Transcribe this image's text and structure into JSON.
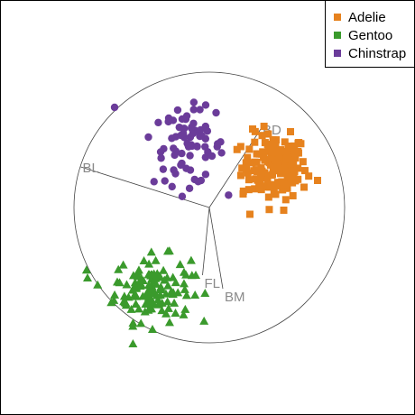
{
  "chart_data": {
    "type": "scatter",
    "title": "",
    "xlabel": "",
    "ylabel": "",
    "grid": false,
    "xlim": [
      -1,
      1
    ],
    "ylim": [
      -1,
      1
    ],
    "legend": {
      "placement": "top-right",
      "entries": [
        {
          "label": "Adelie",
          "color": "#e6821e",
          "shape": "square"
        },
        {
          "label": "Gentoo",
          "color": "#3a9a2c",
          "shape": "triangle"
        },
        {
          "label": "Chinstrap",
          "color": "#6b3c9a",
          "shape": "circle"
        }
      ]
    },
    "axes": [
      {
        "label": "BD",
        "end": [
          0.38,
          0.58
        ]
      },
      {
        "label": "BL",
        "end": [
          -0.95,
          0.3
        ]
      },
      {
        "label": "BM",
        "end": [
          0.1,
          -0.6
        ]
      },
      {
        "label": "FL",
        "end": [
          -0.05,
          -0.5
        ]
      }
    ],
    "series": [
      {
        "name": "Adelie",
        "color": "#e6821e",
        "shape": "square",
        "center": [
          0.48,
          0.3
        ],
        "spread": [
          0.12,
          0.12
        ],
        "extremes": [
          [
            0.32,
            0.58
          ],
          [
            0.6,
            0.56
          ],
          [
            0.7,
            0.15
          ],
          [
            0.8,
            0.2
          ],
          [
            0.25,
            0.1
          ],
          [
            0.3,
            -0.05
          ],
          [
            0.55,
            -0.02
          ]
        ]
      },
      {
        "name": "Gentoo",
        "color": "#3a9a2c",
        "shape": "triangle",
        "center": [
          -0.42,
          -0.6
        ],
        "spread": [
          0.14,
          0.12
        ],
        "extremes": [
          [
            -0.9,
            -0.52
          ],
          [
            -0.68,
            -0.55
          ],
          [
            -0.42,
            -0.9
          ],
          [
            -0.1,
            -0.5
          ],
          [
            -0.25,
            -0.78
          ]
        ]
      },
      {
        "name": "Chinstrap",
        "color": "#6b3c9a",
        "shape": "circle",
        "center": [
          -0.15,
          0.45
        ],
        "spread": [
          0.13,
          0.14
        ],
        "extremes": [
          [
            -0.7,
            0.74
          ],
          [
            -0.45,
            0.52
          ],
          [
            0.02,
            0.38
          ],
          [
            -0.25,
            0.25
          ],
          [
            0.05,
            0.7
          ],
          [
            -0.3,
            0.66
          ]
        ]
      }
    ],
    "points_per_series": {
      "Adelie": 150,
      "Gentoo": 123,
      "Chinstrap": 68
    }
  }
}
